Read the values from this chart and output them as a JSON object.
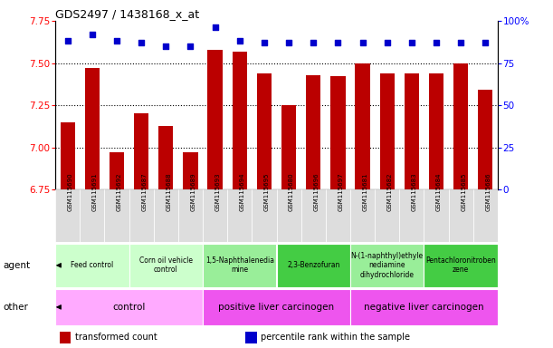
{
  "title": "GDS2497 / 1438168_x_at",
  "samples": [
    "GSM115690",
    "GSM115691",
    "GSM115692",
    "GSM115687",
    "GSM115688",
    "GSM115689",
    "GSM115693",
    "GSM115694",
    "GSM115695",
    "GSM115680",
    "GSM115696",
    "GSM115697",
    "GSM115681",
    "GSM115682",
    "GSM115683",
    "GSM115684",
    "GSM115685",
    "GSM115686"
  ],
  "bar_values": [
    7.15,
    7.47,
    6.97,
    7.2,
    7.13,
    6.97,
    7.58,
    7.57,
    7.44,
    7.25,
    7.43,
    7.42,
    7.5,
    7.44,
    7.44,
    7.44,
    7.5,
    7.34
  ],
  "percentile_values": [
    88,
    92,
    88,
    87,
    85,
    85,
    96,
    88,
    87,
    87,
    87,
    87,
    87,
    87,
    87,
    87,
    87,
    87
  ],
  "ylim_left": [
    6.75,
    7.75
  ],
  "ylim_right": [
    0,
    100
  ],
  "yticks_left": [
    6.75,
    7.0,
    7.25,
    7.5,
    7.75
  ],
  "yticks_right": [
    0,
    25,
    50,
    75,
    100
  ],
  "ytick_labels_right": [
    "0",
    "25",
    "50",
    "75",
    "100%"
  ],
  "bar_color": "#bb0000",
  "percentile_color": "#0000cc",
  "agent_groups": [
    {
      "label": "Feed control",
      "start": 0,
      "end": 3,
      "color": "#ccffcc"
    },
    {
      "label": "Corn oil vehicle\ncontrol",
      "start": 3,
      "end": 6,
      "color": "#ccffcc"
    },
    {
      "label": "1,5-Naphthalenedia\nmine",
      "start": 6,
      "end": 9,
      "color": "#99ee99"
    },
    {
      "label": "2,3-Benzofuran",
      "start": 9,
      "end": 12,
      "color": "#44cc44"
    },
    {
      "label": "N-(1-naphthyl)ethyle\nnediamine\ndihydrochloride",
      "start": 12,
      "end": 15,
      "color": "#99ee99"
    },
    {
      "label": "Pentachloronitroben\nzene",
      "start": 15,
      "end": 18,
      "color": "#44cc44"
    }
  ],
  "other_groups": [
    {
      "label": "control",
      "start": 0,
      "end": 6,
      "color": "#ffaaff"
    },
    {
      "label": "positive liver carcinogen",
      "start": 6,
      "end": 12,
      "color": "#ee55ee"
    },
    {
      "label": "negative liver carcinogen",
      "start": 12,
      "end": 18,
      "color": "#ee55ee"
    }
  ],
  "legend_items": [
    {
      "label": "transformed count",
      "color": "#bb0000"
    },
    {
      "label": "percentile rank within the sample",
      "color": "#0000cc"
    }
  ],
  "grid_values": [
    7.0,
    7.25,
    7.5
  ],
  "plot_bg": "#ffffff",
  "xticklabel_bg": "#dddddd"
}
